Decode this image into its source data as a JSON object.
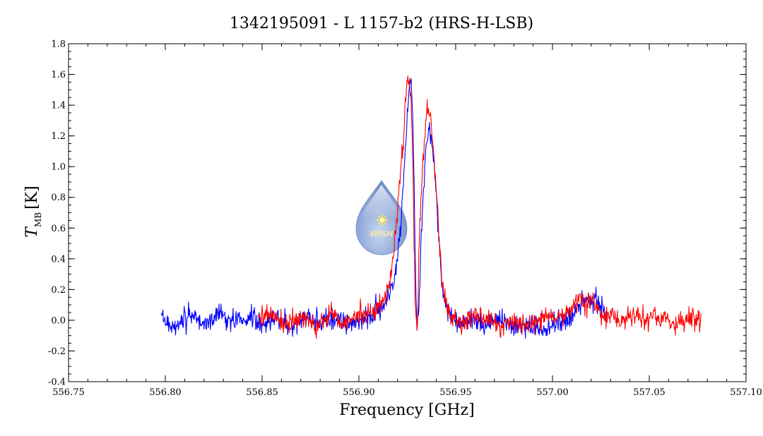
{
  "chart_data": {
    "type": "line",
    "title": "1342195091 - L 1157-b2 (HRS-H-LSB)",
    "xlabel": "Frequency [GHz]",
    "ylabel": "T",
    "ylabel_subscript": "MB",
    "ylabel_unit": "[K]",
    "xlim": [
      556.75,
      557.1
    ],
    "ylim": [
      -0.4,
      1.8
    ],
    "xticks": [
      556.75,
      556.8,
      556.85,
      556.9,
      556.95,
      557.0,
      557.05,
      557.1
    ],
    "xtick_labels": [
      "556.75",
      "556.80",
      "556.85",
      "556.90",
      "556.95",
      "557.00",
      "557.05",
      "557.10"
    ],
    "yticks": [
      -0.4,
      -0.2,
      0.0,
      0.2,
      0.4,
      0.6,
      0.8,
      1.0,
      1.2,
      1.4,
      1.6,
      1.8
    ],
    "ytick_labels": [
      "-0.4",
      "-0.2",
      "0.0",
      "0.2",
      "0.4",
      "0.6",
      "0.8",
      "1.0",
      "1.2",
      "1.4",
      "1.6",
      "1.8"
    ],
    "grid": false,
    "logo_text": "WISH",
    "series": [
      {
        "color": "#0000ff",
        "x": [
          556.798,
          556.805,
          556.812,
          556.82,
          556.828,
          556.835,
          556.842,
          556.85,
          556.858,
          556.865,
          556.872,
          556.88,
          556.888,
          556.895,
          556.902,
          556.908,
          556.912,
          556.916,
          556.919,
          556.921,
          556.923,
          556.924,
          556.925,
          556.926,
          556.927,
          556.9275,
          556.928,
          556.9285,
          556.929,
          556.9295,
          556.93,
          556.9305,
          556.931,
          556.932,
          556.933,
          556.934,
          556.935,
          556.936,
          556.937,
          556.938,
          556.939,
          556.94,
          556.941,
          556.942,
          556.943,
          556.945,
          556.948,
          556.952,
          556.958,
          556.965,
          556.972,
          556.98,
          556.988,
          556.995,
          557.002,
          557.008,
          557.012,
          557.014,
          557.016,
          557.018,
          557.02,
          557.022,
          557.024,
          557.026,
          557.028
        ],
        "y": [
          0.02,
          -0.05,
          0.03,
          -0.02,
          0.04,
          -0.01,
          0.02,
          -0.03,
          0.01,
          -0.04,
          0.02,
          -0.01,
          0.01,
          -0.02,
          0.02,
          0.04,
          0.08,
          0.15,
          0.3,
          0.55,
          0.85,
          1.1,
          1.38,
          1.52,
          1.54,
          1.4,
          1.2,
          0.9,
          0.5,
          0.15,
          -0.05,
          -0.02,
          0.05,
          0.45,
          0.75,
          0.95,
          1.15,
          1.25,
          1.22,
          1.15,
          1.0,
          0.82,
          0.6,
          0.4,
          0.22,
          0.08,
          0.03,
          -0.03,
          0.02,
          -0.04,
          0.01,
          -0.05,
          -0.03,
          -0.06,
          -0.02,
          0.01,
          0.05,
          0.1,
          0.13,
          0.12,
          0.1,
          0.15,
          0.12,
          0.08,
          0.04
        ]
      },
      {
        "color": "#ff0000",
        "x": [
          556.848,
          556.855,
          556.862,
          556.87,
          556.878,
          556.885,
          556.892,
          556.9,
          556.906,
          556.91,
          556.914,
          556.917,
          556.919,
          556.921,
          556.923,
          556.924,
          556.925,
          556.926,
          556.927,
          556.9275,
          556.928,
          556.9285,
          556.929,
          556.9295,
          556.93,
          556.9305,
          556.931,
          556.932,
          556.933,
          556.934,
          556.935,
          556.936,
          556.937,
          556.938,
          556.939,
          556.94,
          556.941,
          556.942,
          556.943,
          556.945,
          556.948,
          556.952,
          556.958,
          556.965,
          556.972,
          556.98,
          556.988,
          556.995,
          557.002,
          557.008,
          557.012,
          557.014,
          557.016,
          557.018,
          557.02,
          557.022,
          557.024,
          557.026,
          557.03,
          557.036,
          557.042,
          557.048,
          557.055,
          557.062,
          557.07,
          557.077
        ],
        "y": [
          0.01,
          0.04,
          -0.03,
          0.03,
          -0.04,
          0.05,
          -0.02,
          0.03,
          0.05,
          0.09,
          0.16,
          0.32,
          0.58,
          0.88,
          1.15,
          1.42,
          1.55,
          1.56,
          1.42,
          1.22,
          0.92,
          0.52,
          0.15,
          -0.06,
          -0.03,
          0.06,
          0.48,
          0.8,
          1.0,
          1.2,
          1.35,
          1.38,
          1.3,
          1.18,
          1.02,
          0.85,
          0.62,
          0.42,
          0.24,
          0.09,
          0.04,
          -0.02,
          0.03,
          0.02,
          -0.03,
          0.0,
          -0.04,
          0.02,
          0.03,
          0.06,
          0.12,
          0.16,
          0.14,
          0.1,
          0.13,
          0.08,
          0.06,
          0.02,
          0.05,
          -0.02,
          0.03,
          0.0,
          0.04,
          -0.03,
          0.02,
          0.0
        ]
      }
    ]
  }
}
